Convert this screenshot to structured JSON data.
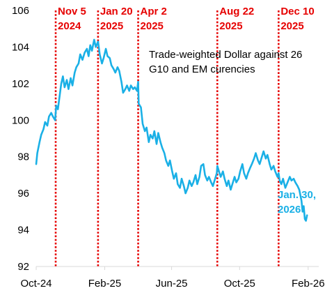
{
  "chart_data": {
    "type": "line",
    "title": "",
    "xlabel": "",
    "ylabel": "",
    "ylim": [
      92,
      106
    ],
    "xlim": [
      "2024-10-01",
      "2026-02-20"
    ],
    "yticks": [
      92,
      94,
      96,
      98,
      100,
      102,
      104,
      106
    ],
    "xticks": [
      {
        "date": "2024-10-01",
        "label": "Oct-24"
      },
      {
        "date": "2025-02-01",
        "label": "Feb-25"
      },
      {
        "date": "2025-06-01",
        "label": "Jun-25"
      },
      {
        "date": "2025-10-01",
        "label": "Oct-25"
      },
      {
        "date": "2026-02-01",
        "label": "Feb-26"
      }
    ],
    "grid": false,
    "line_color": "#1ab0e6",
    "event_color": "#e60000",
    "annotation": [
      "Trade-weighted Dollar against 26",
      "G10 and EM curencies"
    ],
    "end_label": [
      "Jan. 30,",
      "2026"
    ],
    "events": [
      {
        "date": "2024-11-05",
        "line1": "Nov 5",
        "line2": "2024"
      },
      {
        "date": "2025-01-20",
        "line1": "Jan 20",
        "line2": "2025"
      },
      {
        "date": "2025-04-02",
        "line1": "Apr 2",
        "line2": "2025"
      },
      {
        "date": "2025-08-22",
        "line1": "Aug 22",
        "line2": "2025"
      },
      {
        "date": "2025-12-10",
        "line1": "Dec 10",
        "line2": "2025"
      }
    ],
    "series": [
      {
        "values": [
          [
            "2024-10-01",
            97.6
          ],
          [
            "2024-10-03",
            98.2
          ],
          [
            "2024-10-07",
            98.8
          ],
          [
            "2024-10-10",
            99.2
          ],
          [
            "2024-10-14",
            99.5
          ],
          [
            "2024-10-17",
            99.9
          ],
          [
            "2024-10-21",
            99.7
          ],
          [
            "2024-10-24",
            100.2
          ],
          [
            "2024-10-28",
            100.4
          ],
          [
            "2024-10-31",
            100.2
          ],
          [
            "2024-11-04",
            100.0
          ],
          [
            "2024-11-06",
            100.8
          ],
          [
            "2024-11-09",
            100.6
          ],
          [
            "2024-11-12",
            101.3
          ],
          [
            "2024-11-15",
            102.0
          ],
          [
            "2024-11-18",
            102.4
          ],
          [
            "2024-11-21",
            101.8
          ],
          [
            "2024-11-25",
            102.2
          ],
          [
            "2024-11-28",
            101.7
          ],
          [
            "2024-12-02",
            102.3
          ],
          [
            "2024-12-05",
            101.9
          ],
          [
            "2024-12-09",
            102.6
          ],
          [
            "2024-12-12",
            102.9
          ],
          [
            "2024-12-16",
            103.1
          ],
          [
            "2024-12-19",
            103.6
          ],
          [
            "2024-12-23",
            103.3
          ],
          [
            "2024-12-27",
            103.7
          ],
          [
            "2024-12-31",
            103.9
          ],
          [
            "2025-01-03",
            103.5
          ],
          [
            "2025-01-06",
            104.1
          ],
          [
            "2025-01-09",
            103.8
          ],
          [
            "2025-01-13",
            104.4
          ],
          [
            "2025-01-16",
            104.0
          ],
          [
            "2025-01-20",
            104.3
          ],
          [
            "2025-01-23",
            103.6
          ],
          [
            "2025-01-27",
            103.1
          ],
          [
            "2025-01-30",
            103.4
          ],
          [
            "2025-02-03",
            103.9
          ],
          [
            "2025-02-06",
            103.5
          ],
          [
            "2025-02-10",
            103.4
          ],
          [
            "2025-02-13",
            103.0
          ],
          [
            "2025-02-17",
            102.8
          ],
          [
            "2025-02-20",
            102.6
          ],
          [
            "2025-02-24",
            102.9
          ],
          [
            "2025-02-27",
            102.7
          ],
          [
            "2025-03-03",
            102.1
          ],
          [
            "2025-03-06",
            101.5
          ],
          [
            "2025-03-10",
            101.7
          ],
          [
            "2025-03-13",
            101.9
          ],
          [
            "2025-03-17",
            101.6
          ],
          [
            "2025-03-20",
            101.9
          ],
          [
            "2025-03-24",
            101.7
          ],
          [
            "2025-03-27",
            101.8
          ],
          [
            "2025-03-31",
            101.6
          ],
          [
            "2025-04-02",
            102.1
          ],
          [
            "2025-04-03",
            100.9
          ],
          [
            "2025-04-07",
            100.7
          ],
          [
            "2025-04-10",
            99.8
          ],
          [
            "2025-04-14",
            99.4
          ],
          [
            "2025-04-17",
            99.6
          ],
          [
            "2025-04-21",
            98.8
          ],
          [
            "2025-04-24",
            99.2
          ],
          [
            "2025-04-28",
            99.0
          ],
          [
            "2025-05-01",
            99.4
          ],
          [
            "2025-05-05",
            98.7
          ],
          [
            "2025-05-08",
            99.3
          ],
          [
            "2025-05-12",
            98.8
          ],
          [
            "2025-05-15",
            98.5
          ],
          [
            "2025-05-19",
            98.2
          ],
          [
            "2025-05-22",
            97.8
          ],
          [
            "2025-05-26",
            97.5
          ],
          [
            "2025-05-29",
            97.8
          ],
          [
            "2025-06-02",
            97.2
          ],
          [
            "2025-06-05",
            96.8
          ],
          [
            "2025-06-09",
            97.1
          ],
          [
            "2025-06-12",
            96.5
          ],
          [
            "2025-06-16",
            96.3
          ],
          [
            "2025-06-19",
            96.8
          ],
          [
            "2025-06-23",
            96.4
          ],
          [
            "2025-06-26",
            96.0
          ],
          [
            "2025-06-30",
            96.3
          ],
          [
            "2025-07-03",
            96.7
          ],
          [
            "2025-07-07",
            96.4
          ],
          [
            "2025-07-10",
            96.6
          ],
          [
            "2025-07-14",
            97.0
          ],
          [
            "2025-07-17",
            96.5
          ],
          [
            "2025-07-21",
            96.9
          ],
          [
            "2025-07-24",
            97.5
          ],
          [
            "2025-07-28",
            97.6
          ],
          [
            "2025-07-31",
            97.0
          ],
          [
            "2025-08-04",
            96.7
          ],
          [
            "2025-08-07",
            96.9
          ],
          [
            "2025-08-11",
            96.6
          ],
          [
            "2025-08-14",
            96.4
          ],
          [
            "2025-08-18",
            96.8
          ],
          [
            "2025-08-21",
            97.1
          ],
          [
            "2025-08-22",
            97.5
          ],
          [
            "2025-08-25",
            97.2
          ],
          [
            "2025-08-28",
            96.9
          ],
          [
            "2025-09-01",
            97.2
          ],
          [
            "2025-09-04",
            96.8
          ],
          [
            "2025-09-08",
            96.4
          ],
          [
            "2025-09-11",
            96.7
          ],
          [
            "2025-09-15",
            96.2
          ],
          [
            "2025-09-18",
            96.5
          ],
          [
            "2025-09-22",
            96.9
          ],
          [
            "2025-09-25",
            96.6
          ],
          [
            "2025-09-29",
            96.8
          ],
          [
            "2025-10-02",
            97.2
          ],
          [
            "2025-10-06",
            97.6
          ],
          [
            "2025-10-09",
            97.1
          ],
          [
            "2025-10-13",
            96.8
          ],
          [
            "2025-10-16",
            97.1
          ],
          [
            "2025-10-20",
            97.4
          ],
          [
            "2025-10-23",
            97.6
          ],
          [
            "2025-10-27",
            97.9
          ],
          [
            "2025-10-30",
            98.2
          ],
          [
            "2025-11-03",
            97.8
          ],
          [
            "2025-11-06",
            97.6
          ],
          [
            "2025-11-10",
            98.0
          ],
          [
            "2025-11-13",
            98.3
          ],
          [
            "2025-11-17",
            97.9
          ],
          [
            "2025-11-20",
            98.1
          ],
          [
            "2025-11-24",
            97.6
          ],
          [
            "2025-11-27",
            97.3
          ],
          [
            "2025-12-01",
            97.5
          ],
          [
            "2025-12-04",
            97.2
          ],
          [
            "2025-12-08",
            96.9
          ],
          [
            "2025-12-10",
            97.1
          ],
          [
            "2025-12-12",
            96.7
          ],
          [
            "2025-12-15",
            96.5
          ],
          [
            "2025-12-18",
            96.8
          ],
          [
            "2025-12-22",
            96.3
          ],
          [
            "2025-12-26",
            96.6
          ],
          [
            "2025-12-30",
            96.9
          ],
          [
            "2026-01-02",
            96.7
          ],
          [
            "2026-01-06",
            96.8
          ],
          [
            "2026-01-09",
            96.6
          ],
          [
            "2026-01-13",
            96.4
          ],
          [
            "2026-01-16",
            96.2
          ],
          [
            "2026-01-20",
            95.6
          ],
          [
            "2026-01-22",
            95.0
          ],
          [
            "2026-01-24",
            95.3
          ],
          [
            "2026-01-26",
            94.6
          ],
          [
            "2026-01-28",
            94.5
          ],
          [
            "2026-01-30",
            94.8
          ]
        ]
      }
    ]
  }
}
